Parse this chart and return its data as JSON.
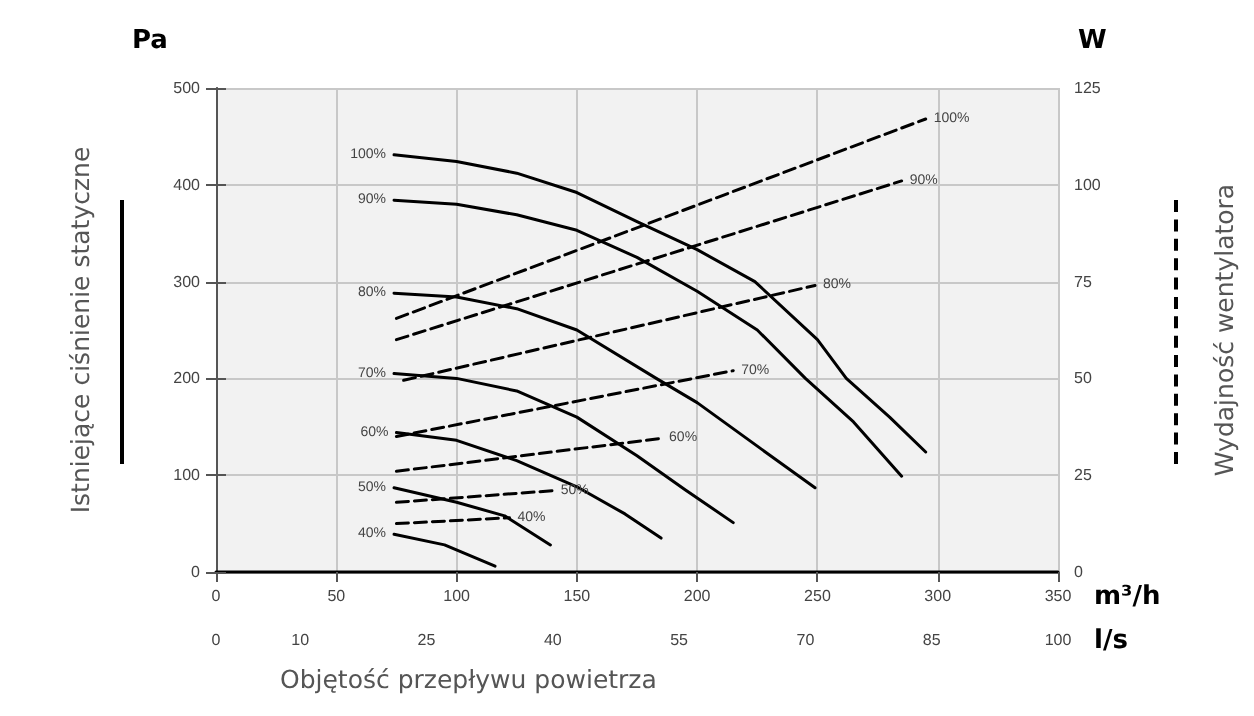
{
  "chart_data": {
    "type": "line",
    "xlabel": "Objętość przepływu powietrza",
    "ylabel": "Istniejące ciśnienie statyczne",
    "y2label": "Wydajność wentylatora",
    "annotations": [
      "Pa",
      "W",
      "m³/h",
      "l/s"
    ],
    "xlim": [
      0,
      350
    ],
    "xticks": [
      0,
      50,
      100,
      150,
      200,
      250,
      300,
      350
    ],
    "x2lim": [
      0,
      100
    ],
    "x2ticks": [
      0,
      10,
      25,
      40,
      55,
      70,
      85,
      100
    ],
    "ylim": [
      0,
      500
    ],
    "yticks": [
      0,
      100,
      200,
      300,
      400,
      500
    ],
    "y2lim": [
      0,
      125
    ],
    "y2ticks": [
      0,
      25,
      50,
      75,
      100,
      125
    ],
    "grid": true,
    "legend": false,
    "marker": "none",
    "series": [
      {
        "name": "100%",
        "color": "#000000",
        "line_style": "solid",
        "x": [
          74,
          100,
          125,
          150,
          175,
          200,
          224,
          250,
          262,
          280,
          295
        ],
        "values": [
          431,
          424,
          412,
          392,
          362,
          333,
          300,
          240,
          200,
          160,
          124
        ]
      },
      {
        "name": "90%",
        "color": "#000000",
        "line_style": "solid",
        "x": [
          74,
          100,
          125,
          150,
          175,
          200,
          225,
          245,
          265,
          285
        ],
        "values": [
          384,
          380,
          369,
          353,
          325,
          290,
          250,
          200,
          155,
          99
        ]
      },
      {
        "name": "80%",
        "color": "#000000",
        "line_style": "solid",
        "x": [
          74,
          100,
          125,
          150,
          183,
          200,
          225,
          249
        ],
        "values": [
          288,
          284,
          272,
          250,
          200,
          175,
          130,
          87
        ]
      },
      {
        "name": "70%",
        "color": "#000000",
        "line_style": "solid",
        "x": [
          74,
          100,
          125,
          150,
          175,
          195,
          215
        ],
        "values": [
          205,
          200,
          187,
          160,
          120,
          85,
          51
        ]
      },
      {
        "name": "60%",
        "color": "#000000",
        "line_style": "solid",
        "x": [
          75,
          100,
          125,
          150,
          170,
          185
        ],
        "values": [
          144,
          136,
          115,
          88,
          60,
          35
        ]
      },
      {
        "name": "50%",
        "color": "#000000",
        "line_style": "solid",
        "x": [
          74,
          100,
          120,
          139
        ],
        "values": [
          87,
          72,
          58,
          28
        ]
      },
      {
        "name": "40%",
        "color": "#000000",
        "line_style": "solid",
        "x": [
          74,
          95,
          116
        ],
        "values": [
          39,
          28,
          6
        ]
      },
      {
        "name": "100%",
        "color": "#000000",
        "line_style": "dashed",
        "axis": "y2",
        "x": [
          75,
          295
        ],
        "values": [
          65.5,
          117
        ]
      },
      {
        "name": "90%",
        "color": "#000000",
        "line_style": "dashed",
        "axis": "y2",
        "x": [
          75,
          285
        ],
        "values": [
          60,
          101
        ]
      },
      {
        "name": "80%",
        "color": "#000000",
        "line_style": "dashed",
        "axis": "y2",
        "x": [
          78,
          249
        ],
        "values": [
          49.5,
          74
        ]
      },
      {
        "name": "70%",
        "color": "#000000",
        "line_style": "dashed",
        "axis": "y2",
        "x": [
          75,
          215
        ],
        "values": [
          35,
          52
        ]
      },
      {
        "name": "60%",
        "color": "#000000",
        "line_style": "dashed",
        "axis": "y2",
        "x": [
          75,
          185
        ],
        "values": [
          26,
          34.5
        ]
      },
      {
        "name": "50%",
        "color": "#000000",
        "line_style": "dashed",
        "axis": "y2",
        "x": [
          75,
          140
        ],
        "values": [
          18,
          21
        ]
      },
      {
        "name": "40%",
        "color": "#000000",
        "line_style": "dashed",
        "axis": "y2",
        "x": [
          75,
          122
        ],
        "values": [
          12.5,
          14
        ]
      }
    ]
  }
}
